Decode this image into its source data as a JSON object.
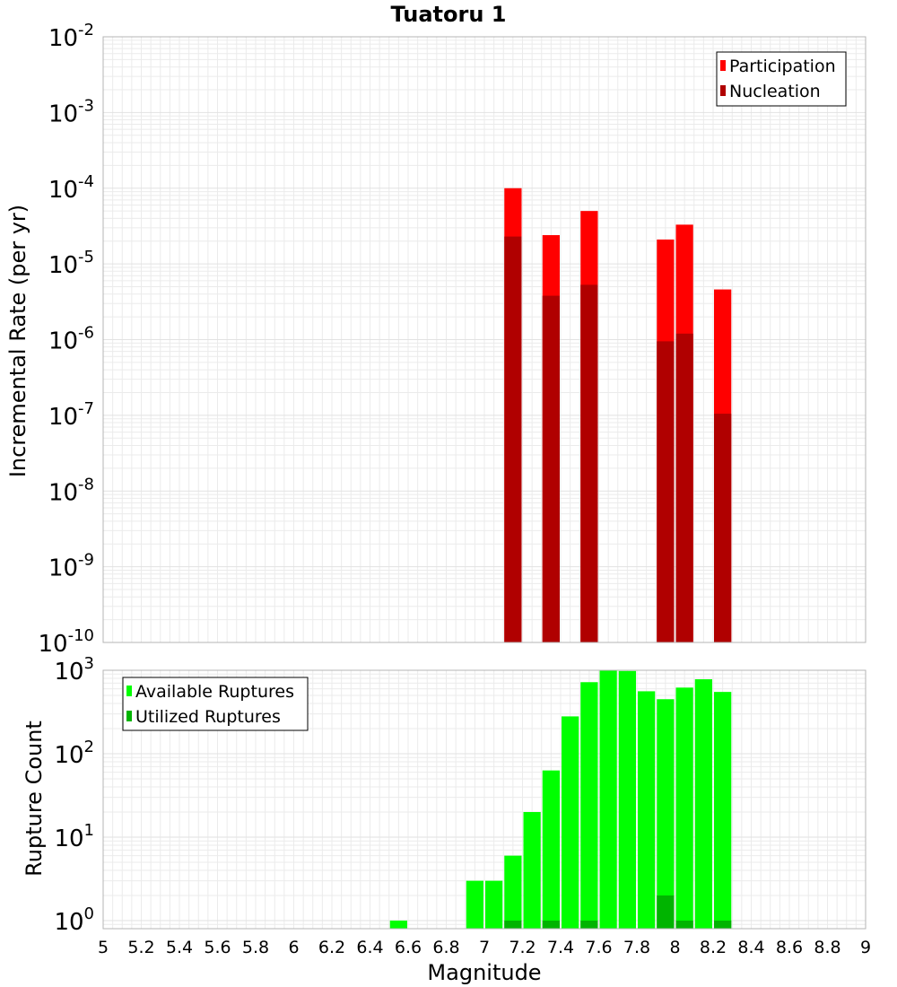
{
  "chart_data": {
    "title": "Tuatoru 1",
    "xlabel": "Magnitude",
    "xlim": [
      5,
      9
    ],
    "x_ticks": [
      "5",
      "5.2",
      "5.4",
      "5.6",
      "5.8",
      "6",
      "6.2",
      "6.4",
      "6.6",
      "6.8",
      "7",
      "7.2",
      "7.4",
      "7.6",
      "7.8",
      "8",
      "8.2",
      "8.4",
      "8.6",
      "8.8",
      "9"
    ],
    "grid": true,
    "panels": [
      {
        "type": "bar",
        "ylabel": "Incremental Rate (per yr)",
        "yscale": "log",
        "ylim": [
          1e-10,
          0.01
        ],
        "y_tick_exponents": [
          -10,
          -9,
          -8,
          -7,
          -6,
          -5,
          -4,
          -3,
          -2
        ],
        "legend": {
          "placement": "top-right"
        },
        "series": [
          {
            "name": "Participation",
            "color": "#ff0000",
            "x": [
              7.15,
              7.35,
              7.55,
              7.95,
              8.05,
              8.25
            ],
            "values": [
              0.0001,
              2.4e-05,
              5e-05,
              2.1e-05,
              3.3e-05,
              4.6e-06
            ]
          },
          {
            "name": "Nucleation",
            "color": "#b00000",
            "x": [
              7.15,
              7.35,
              7.55,
              7.95,
              8.05,
              8.25
            ],
            "values": [
              2.3e-05,
              3.8e-06,
              5.3e-06,
              9.5e-07,
              1.2e-06,
              1.05e-07
            ]
          }
        ]
      },
      {
        "type": "bar",
        "ylabel": "Rupture Count",
        "yscale": "log",
        "ylim": [
          0.8,
          1000
        ],
        "y_tick_exponents": [
          0,
          1,
          2,
          3
        ],
        "legend": {
          "placement": "top-left"
        },
        "series": [
          {
            "name": "Available Ruptures",
            "color": "#00ff00",
            "x": [
              6.55,
              6.95,
              7.05,
              7.15,
              7.25,
              7.35,
              7.45,
              7.55,
              7.65,
              7.75,
              7.85,
              7.95,
              8.05,
              8.15,
              8.25
            ],
            "values": [
              1,
              3,
              3,
              6,
              20,
              63,
              280,
              720,
              1000,
              980,
              560,
              450,
              620,
              780,
              550
            ]
          },
          {
            "name": "Utilized Ruptures",
            "color": "#00b400",
            "x": [
              7.15,
              7.35,
              7.55,
              7.95,
              8.05,
              8.25
            ],
            "values": [
              1,
              1,
              1,
              2,
              1,
              1
            ]
          }
        ]
      }
    ]
  }
}
